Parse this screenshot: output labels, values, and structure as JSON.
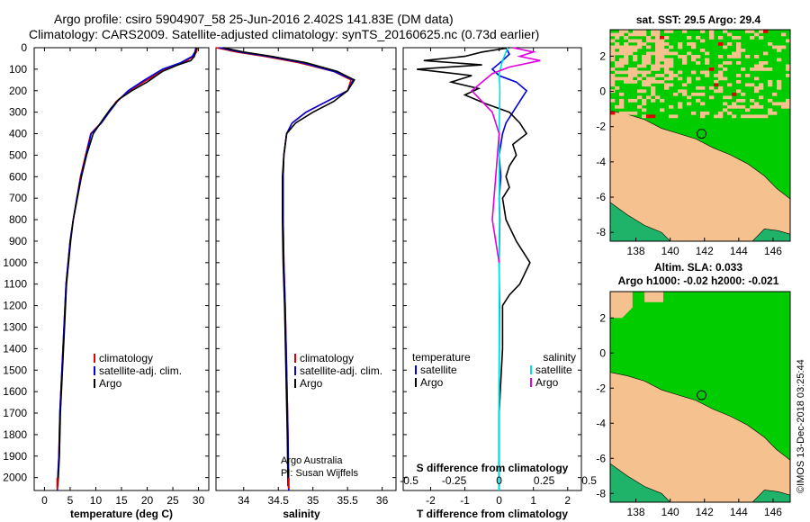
{
  "header": {
    "line1": "Argo profile: csiro 5904907_58 25-Jun-2016 2.402S 141.83E (DM data)",
    "line2": "Climatology: CARS2009. Satellite-adjusted climatology: synTS_20160625.nc (0.73d earlier)"
  },
  "colors": {
    "argo": "#000000",
    "climatology": "#e00000",
    "satellite": "#0000e0",
    "s_satellite": "#00e0e0",
    "s_argo": "#e000e0",
    "land": "#f5c18e",
    "green": "#00cc00"
  },
  "depth_axis": {
    "ticks": [
      0,
      100,
      200,
      300,
      400,
      500,
      600,
      700,
      800,
      900,
      1000,
      1100,
      1200,
      1300,
      1400,
      1500,
      1600,
      1700,
      1800,
      1900,
      2000
    ],
    "ylim": [
      2060,
      0
    ]
  },
  "chart_data": [
    {
      "type": "line",
      "id": "temperature",
      "xlabel": "temperature (deg C)",
      "xlim": [
        -2,
        32
      ],
      "xticks": [
        0,
        5,
        10,
        15,
        20,
        25,
        30
      ],
      "ylim": [
        2060,
        0
      ],
      "legend": [
        "climatology",
        "satellite-adj. clim.",
        "Argo"
      ],
      "legend_position": "bottom-center",
      "series": [
        {
          "name": "climatology",
          "color": "#e00000",
          "x": [
            29.8,
            29.6,
            29.0,
            27.0,
            23.5,
            20.0,
            16.5,
            14.0,
            12.5,
            11.0,
            9.0,
            8.0,
            7.0,
            6.3,
            5.6,
            5.0,
            4.2,
            3.8,
            3.4,
            3.0,
            2.8,
            2.6,
            2.5
          ],
          "y": [
            0,
            20,
            40,
            70,
            100,
            150,
            200,
            250,
            300,
            350,
            400,
            500,
            600,
            700,
            800,
            900,
            1100,
            1300,
            1500,
            1700,
            1900,
            2000,
            2060
          ]
        },
        {
          "name": "satellite-adj. clim.",
          "color": "#0000e0",
          "x": [
            29.5,
            29.3,
            28.8,
            26.5,
            23.0,
            19.5,
            16.3,
            14.2,
            12.6,
            11.1,
            9.1,
            8.1,
            7.1,
            6.3,
            5.6,
            5.0,
            4.2,
            3.8,
            3.4,
            3.0,
            2.8,
            2.6,
            2.5
          ],
          "y": [
            0,
            20,
            40,
            70,
            100,
            150,
            200,
            250,
            300,
            350,
            400,
            500,
            600,
            700,
            800,
            900,
            1100,
            1300,
            1500,
            1700,
            1900,
            2000,
            2060
          ]
        },
        {
          "name": "Argo",
          "color": "#000000",
          "x": [
            29.6,
            29.4,
            29.2,
            28.5,
            26.0,
            23.0,
            20.0,
            17.0,
            14.5,
            13.0,
            11.5,
            9.5,
            8.2,
            7.2,
            6.4,
            5.6,
            5.1,
            4.3,
            3.9,
            3.5,
            3.1,
            2.9,
            2.7,
            2.6
          ],
          "y": [
            0,
            20,
            40,
            60,
            80,
            110,
            160,
            200,
            240,
            280,
            330,
            400,
            500,
            600,
            700,
            800,
            900,
            1100,
            1300,
            1500,
            1700,
            1900,
            2000,
            2040
          ]
        }
      ]
    },
    {
      "type": "line",
      "id": "salinity",
      "xlabel": "salinity",
      "xlim": [
        33.6,
        36.2
      ],
      "xticks": [
        34,
        34.5,
        35,
        35.5,
        36
      ],
      "ylim": [
        2060,
        0
      ],
      "legend": [
        "climatology",
        "satellite-adj. clim.",
        "Argo"
      ],
      "legend_position": "bottom-center",
      "annotations": [
        "Argo Australia",
        "PI: Susan Wijffels"
      ],
      "series": [
        {
          "name": "climatology",
          "color": "#e00000",
          "x": [
            33.6,
            33.9,
            34.3,
            34.8,
            35.3,
            35.55,
            35.5,
            35.2,
            34.9,
            34.7,
            34.62,
            34.58,
            34.57,
            34.57,
            34.58,
            34.6,
            34.62,
            34.64,
            34.65
          ],
          "y": [
            0,
            20,
            40,
            70,
            110,
            150,
            200,
            250,
            300,
            350,
            400,
            500,
            600,
            800,
            1000,
            1200,
            1500,
            1800,
            2060
          ]
        },
        {
          "name": "satellite-adj. clim.",
          "color": "#0000e0",
          "x": [
            33.65,
            33.95,
            34.35,
            34.85,
            35.3,
            35.58,
            35.5,
            35.2,
            34.9,
            34.7,
            34.62,
            34.58,
            34.57,
            34.57,
            34.58,
            34.6,
            34.62,
            34.64,
            34.65
          ],
          "y": [
            0,
            20,
            40,
            70,
            110,
            150,
            200,
            250,
            300,
            350,
            400,
            500,
            600,
            800,
            1000,
            1200,
            1500,
            1800,
            2060
          ]
        },
        {
          "name": "Argo",
          "color": "#000000",
          "x": [
            33.7,
            34.0,
            34.4,
            34.9,
            35.35,
            35.6,
            35.5,
            35.3,
            35.0,
            34.75,
            34.62,
            34.58,
            34.56,
            34.56,
            34.57,
            34.59,
            34.61,
            34.63,
            34.64
          ],
          "y": [
            0,
            20,
            40,
            70,
            110,
            150,
            200,
            250,
            300,
            350,
            400,
            500,
            600,
            800,
            1000,
            1200,
            1500,
            1800,
            2040
          ]
        }
      ]
    },
    {
      "type": "line",
      "id": "differences",
      "xlabel": "T difference from climatology",
      "xlim": [
        -2.8,
        2.4
      ],
      "xticks": [
        -2,
        -1,
        0,
        1,
        2
      ],
      "top_axis_label": "S difference from climatology",
      "top_axis_ticks": [
        "-0.5",
        "-0.25",
        "0",
        "0.25",
        "0.5"
      ],
      "top_axis_values": [
        -0.5,
        -0.25,
        0,
        0.25,
        0.5
      ],
      "ylim": [
        2060,
        0
      ],
      "legend_left_title": "temperature",
      "legend_right_title": "salinity",
      "legend_left": [
        "satellite",
        "Argo"
      ],
      "legend_right": [
        "satellite",
        "Argo"
      ],
      "legend_position": "bottom",
      "series": [
        {
          "name": "satellite",
          "color": "#0000e0",
          "x": [
            0.2,
            0.3,
            0.1,
            -0.2,
            0.0,
            0.5,
            0.8,
            0.6,
            0.4,
            0.2,
            0.1,
            0.0,
            0.05,
            0.0,
            0.02,
            0.0,
            0.01,
            0.0,
            0.0
          ],
          "y": [
            0,
            30,
            60,
            100,
            130,
            160,
            200,
            250,
            300,
            350,
            400,
            500,
            600,
            700,
            800,
            1000,
            1200,
            1600,
            2060
          ]
        },
        {
          "name": "Argo",
          "color": "#000000",
          "x": [
            0.3,
            -0.5,
            -1.0,
            -2.2,
            -0.5,
            -2.4,
            -0.8,
            -1.4,
            -0.6,
            -1.0,
            -0.4,
            0.3,
            0.6,
            0.8,
            0.4,
            0.5,
            0.3,
            0.2,
            0.3,
            0.1,
            0.2,
            0.5,
            0.9,
            0.6,
            0.3,
            0.1,
            0.1,
            0.0,
            0.0
          ],
          "y": [
            0,
            20,
            40,
            60,
            80,
            100,
            130,
            160,
            190,
            220,
            260,
            300,
            350,
            400,
            450,
            500,
            550,
            600,
            650,
            700,
            800,
            900,
            1000,
            1100,
            1150,
            1200,
            1400,
            1700,
            2040
          ]
        },
        {
          "name": "S satellite",
          "color": "#00e0e0",
          "x": [
            0.25,
            0.1,
            0.0,
            0.02,
            0.0,
            0.01,
            0.0,
            0.0
          ],
          "y": [
            0,
            60,
            120,
            200,
            400,
            800,
            1200,
            2060
          ]
        },
        {
          "name": "S Argo",
          "color": "#e000e0",
          "x": [
            0.4,
            1.0,
            0.6,
            1.2,
            0.3,
            -0.2,
            -0.5,
            -0.8,
            -0.2,
            0.0,
            -0.1,
            -0.2,
            -0.1,
            0.0
          ],
          "y": [
            0,
            20,
            40,
            60,
            90,
            120,
            160,
            200,
            300,
            400,
            600,
            800,
            900,
            1000
          ]
        }
      ]
    },
    {
      "type": "heatmap",
      "id": "map-sst",
      "title": "sat. SST: 29.5 Argo: 29.4",
      "xlim": [
        136.5,
        147
      ],
      "ylim": [
        -8.5,
        3.5
      ],
      "xticks": [
        138,
        140,
        142,
        144,
        146
      ],
      "yticks": [
        -8,
        -6,
        -4,
        -2,
        0,
        2
      ],
      "argo_position": {
        "lon": 141.83,
        "lat": -2.402
      }
    },
    {
      "type": "heatmap",
      "id": "map-sla",
      "title": "Altim. SLA: 0.033",
      "subtitle": "Argo h1000: -0.02 h2000: -0.021",
      "xlim": [
        136.5,
        147
      ],
      "ylim": [
        -8.5,
        3.5
      ],
      "xticks": [
        138,
        140,
        142,
        144,
        146
      ],
      "yticks": [
        -8,
        -6,
        -4,
        -2,
        0,
        2
      ],
      "argo_position": {
        "lon": 141.83,
        "lat": -2.402
      }
    }
  ],
  "side_label": "©IMOS 13-Dec-2018 03:25:44"
}
